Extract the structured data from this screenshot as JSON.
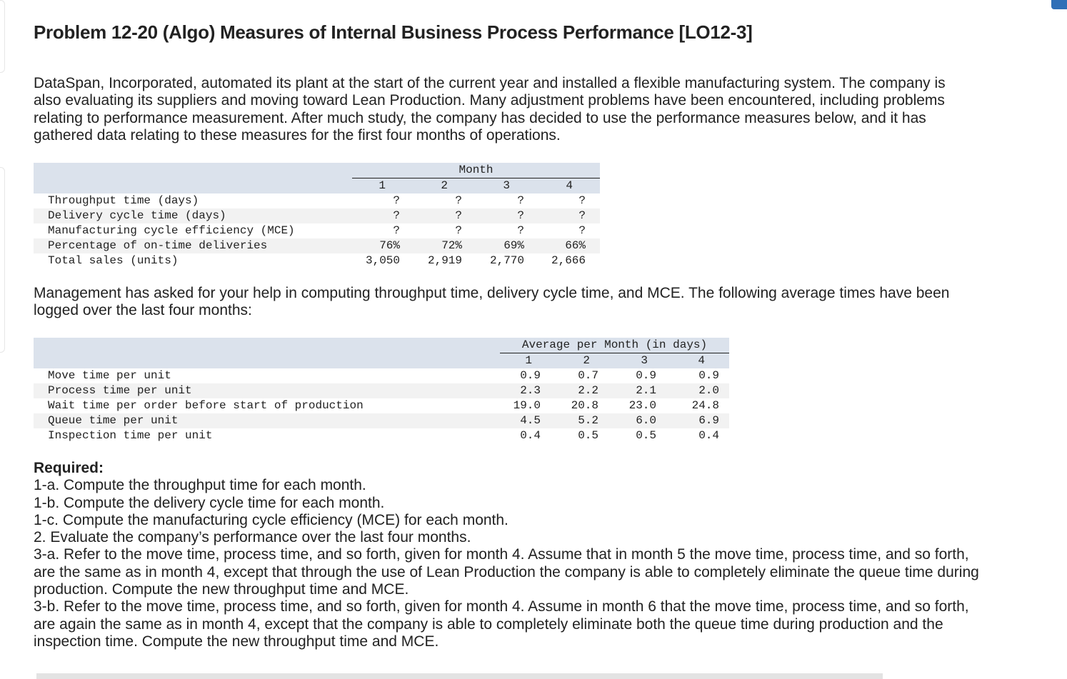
{
  "title": "Problem 12-20 (Algo) Measures of Internal Business Process Performance [LO12-3]",
  "intro": "DataSpan, Incorporated, automated its plant at the start of the current year and installed a flexible manufacturing system. The company is also evaluating its suppliers and moving toward Lean Production. Many adjustment problems have been encountered, including problems relating to performance measurement. After much study, the company has decided to use the performance measures below, and it has gathered data relating to these measures for the first four months of operations.",
  "table1": {
    "group_header": "Month",
    "columns": [
      "1",
      "2",
      "3",
      "4"
    ],
    "rows": [
      {
        "label": "Throughput time (days)",
        "values": [
          "?",
          "?",
          "?",
          "?"
        ]
      },
      {
        "label": "Delivery cycle time (days)",
        "values": [
          "?",
          "?",
          "?",
          "?"
        ]
      },
      {
        "label": "Manufacturing cycle efficiency (MCE)",
        "values": [
          "?",
          "?",
          "?",
          "?"
        ]
      },
      {
        "label": "Percentage of on-time deliveries",
        "values": [
          "76%",
          "72%",
          "69%",
          "66%"
        ]
      },
      {
        "label": "Total sales (units)",
        "values": [
          "3,050",
          "2,919",
          "2,770",
          "2,666"
        ]
      }
    ]
  },
  "middle": "Management has asked for your help in computing throughput time, delivery cycle time, and MCE. The following average times have been logged over the last four months:",
  "table2": {
    "group_header": "Average per Month (in days)",
    "columns": [
      "1",
      "2",
      "3",
      "4"
    ],
    "rows": [
      {
        "label": "Move time per unit",
        "values": [
          "0.9",
          "0.7",
          "0.9",
          "0.9"
        ]
      },
      {
        "label": "Process time per unit",
        "values": [
          "2.3",
          "2.2",
          "2.1",
          "2.0"
        ]
      },
      {
        "label": "Wait time per order before start of production",
        "values": [
          "19.0",
          "20.8",
          "23.0",
          "24.8"
        ]
      },
      {
        "label": "Queue time per unit",
        "values": [
          "4.5",
          "5.2",
          "6.0",
          "6.9"
        ]
      },
      {
        "label": "Inspection time per unit",
        "values": [
          "0.4",
          "0.5",
          "0.5",
          "0.4"
        ]
      }
    ]
  },
  "required": {
    "heading": "Required:",
    "items": [
      "1-a. Compute the throughput time for each month.",
      "1-b. Compute the delivery cycle time for each month.",
      "1-c. Compute the manufacturing cycle efficiency (MCE) for each month.",
      "2. Evaluate the company’s performance over the last four months.",
      "3-a. Refer to the move time, process time, and so forth, given for month 4. Assume that in month 5 the move time, process time, and so forth, are the same as in month 4, except that through the use of Lean Production the company is able to completely eliminate the queue time during production.  Compute the new throughput time and MCE.",
      "3-b. Refer to the move time, process time, and so forth, given for month 4. Assume in month 6 that the move time, process time, and so forth, are again the same as in month 4, except that the company is able to completely eliminate both the queue time during production and the inspection time. Compute the new throughput time and MCE."
    ]
  }
}
